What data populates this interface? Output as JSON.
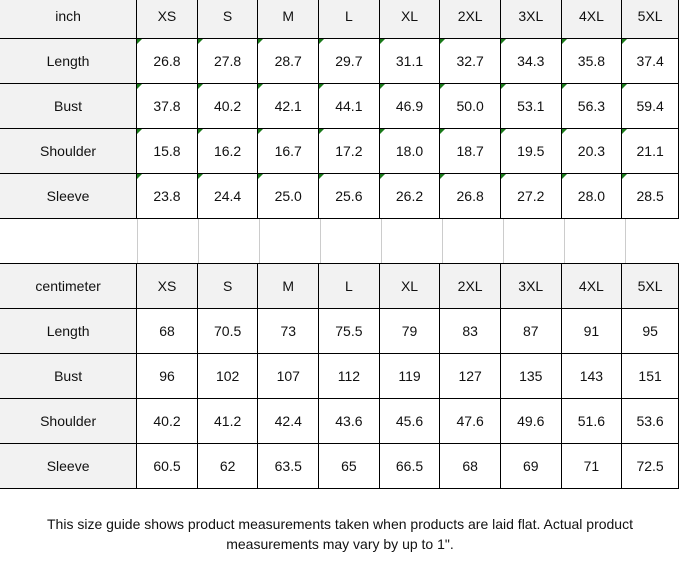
{
  "inch_table": {
    "unit": "inch",
    "sizes": [
      "XS",
      "S",
      "M",
      "L",
      "XL",
      "2XL",
      "3XL",
      "4XL",
      "5XL"
    ],
    "rows": [
      {
        "label": "Length",
        "values": [
          "26.8",
          "27.8",
          "28.7",
          "29.7",
          "31.1",
          "32.7",
          "34.3",
          "35.8",
          "37.4"
        ]
      },
      {
        "label": "Bust",
        "values": [
          "37.8",
          "40.2",
          "42.1",
          "44.1",
          "46.9",
          "50.0",
          "53.1",
          "56.3",
          "59.4"
        ]
      },
      {
        "label": "Shoulder",
        "values": [
          "15.8",
          "16.2",
          "16.7",
          "17.2",
          "18.0",
          "18.7",
          "19.5",
          "20.3",
          "21.1"
        ]
      },
      {
        "label": "Sleeve",
        "values": [
          "23.8",
          "24.4",
          "25.0",
          "25.6",
          "26.2",
          "26.8",
          "27.2",
          "28.0",
          "28.5"
        ]
      }
    ]
  },
  "cm_table": {
    "unit": "centimeter",
    "sizes": [
      "XS",
      "S",
      "M",
      "L",
      "XL",
      "2XL",
      "3XL",
      "4XL",
      "5XL"
    ],
    "rows": [
      {
        "label": "Length",
        "values": [
          "68",
          "70.5",
          "73",
          "75.5",
          "79",
          "83",
          "87",
          "91",
          "95"
        ]
      },
      {
        "label": "Bust",
        "values": [
          "96",
          "102",
          "107",
          "112",
          "119",
          "127",
          "135",
          "143",
          "151"
        ]
      },
      {
        "label": "Shoulder",
        "values": [
          "40.2",
          "41.2",
          "42.4",
          "43.6",
          "45.6",
          "47.6",
          "49.6",
          "51.6",
          "53.6"
        ]
      },
      {
        "label": "Sleeve",
        "values": [
          "60.5",
          "62",
          "63.5",
          "65",
          "66.5",
          "68",
          "69",
          "71",
          "72.5"
        ]
      }
    ]
  },
  "caption": "This size guide shows product measurements taken when products are laid flat. Actual product measurements may vary by up to 1\".",
  "colors": {
    "header_bg": "#f2f2f2",
    "border": "#000000",
    "marker": "#1a7a1a"
  }
}
